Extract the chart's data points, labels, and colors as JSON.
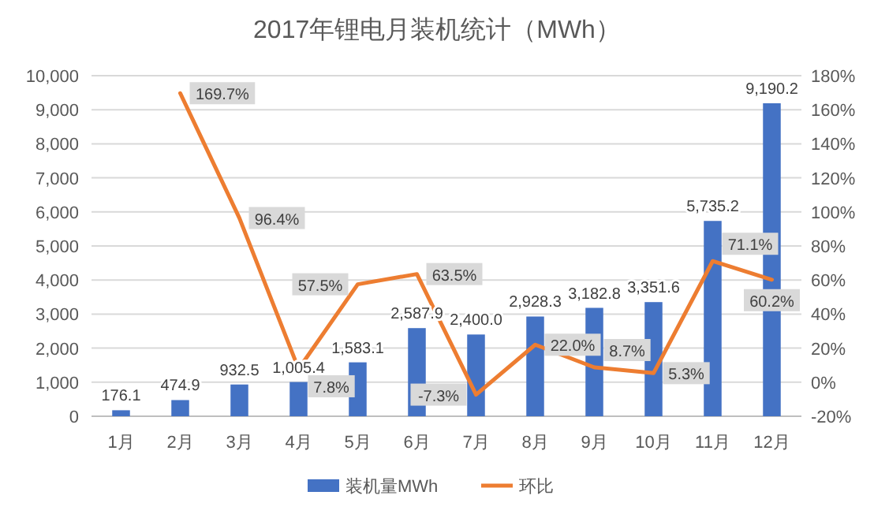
{
  "chart_data": {
    "type": "bar",
    "title": "2017年锂电月装机统计（MWh）",
    "categories": [
      "1月",
      "2月",
      "3月",
      "4月",
      "5月",
      "6月",
      "7月",
      "8月",
      "9月",
      "10月",
      "11月",
      "12月"
    ],
    "series": [
      {
        "name": "装机量MWh",
        "color": "#4472c4",
        "values": [
          176.1,
          474.9,
          932.5,
          1005.4,
          1583.1,
          2587.9,
          2400.0,
          2928.3,
          3182.8,
          3351.6,
          5735.2,
          9190.2
        ],
        "value_labels": [
          "176.1",
          "474.9",
          "932.5",
          "1,005.4",
          "1,583.1",
          "2,587.9",
          "2,400.0",
          "2,928.3",
          "3,182.8",
          "3,351.6",
          "5,735.2",
          "9,190.2"
        ]
      },
      {
        "type": "line",
        "name": "环比",
        "color": "#ed7d31",
        "axis": "y2",
        "values": [
          null,
          169.7,
          96.4,
          7.8,
          57.5,
          63.5,
          -7.3,
          22.0,
          8.7,
          5.3,
          71.1,
          60.2
        ],
        "value_labels": [
          null,
          "169.7%",
          "96.4%",
          "7.8%",
          "57.5%",
          "63.5%",
          "-7.3%",
          "22.0%",
          "8.7%",
          "5.3%",
          "71.1%",
          "60.2%"
        ]
      }
    ],
    "ylim": [
      0,
      10000
    ],
    "yticks": [
      0,
      {
        "value": 1000,
        "label": "1,000"
      },
      {
        "value": 2000,
        "label": "2,000"
      },
      {
        "value": 3000,
        "label": "3,000"
      },
      {
        "value": 4000,
        "label": "4,000"
      },
      {
        "value": 5000,
        "label": "5,000"
      },
      {
        "value": 6000,
        "label": "6,000"
      },
      {
        "value": 7000,
        "label": "7,000"
      },
      {
        "value": 8000,
        "label": "8,000"
      },
      {
        "value": 9000,
        "label": "9,000"
      },
      {
        "value": 10000,
        "label": "10,000"
      }
    ],
    "y2lim": [
      -20,
      180
    ],
    "y2ticks": [
      {
        "value": -20,
        "label": "-20%"
      },
      {
        "value": 0,
        "label": "0%"
      },
      {
        "value": 20,
        "label": "20%"
      },
      {
        "value": 40,
        "label": "40%"
      },
      {
        "value": 60,
        "label": "60%"
      },
      {
        "value": 80,
        "label": "80%"
      },
      {
        "value": 100,
        "label": "100%"
      },
      {
        "value": 120,
        "label": "120%"
      },
      {
        "value": 140,
        "label": "140%"
      },
      {
        "value": 160,
        "label": "160%"
      },
      {
        "value": 180,
        "label": "180%"
      }
    ],
    "grid": "y",
    "legend": "bottom"
  }
}
